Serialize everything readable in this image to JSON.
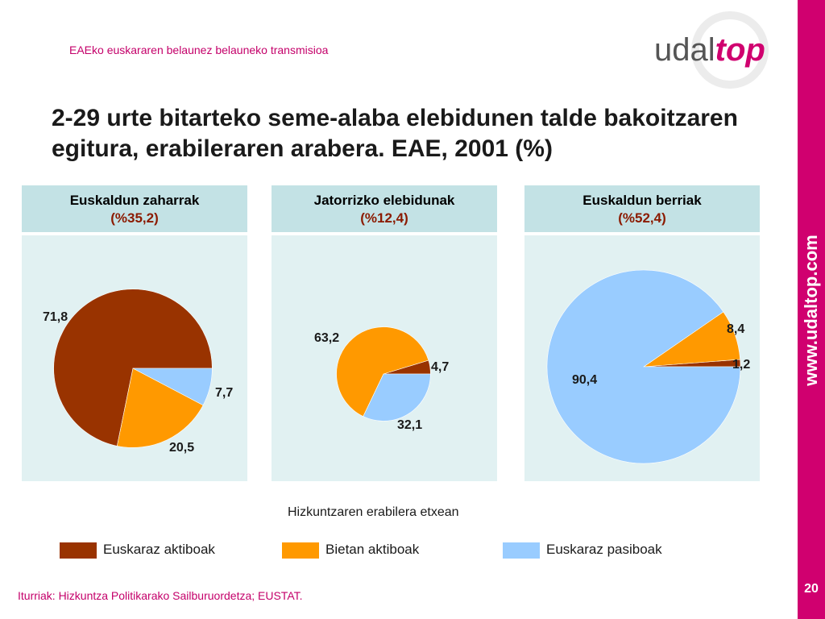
{
  "header": {
    "subtitle": "EAEko euskararen belaunez belauneko transmisioa"
  },
  "logo": {
    "part1": "udal",
    "part2": "top"
  },
  "sidebar": {
    "url": "www.udaltop.com",
    "page_number": "20"
  },
  "title": "2-29 urte bitarteko seme-alaba elebidunen talde bakoitzaren egitura, erabileraren arabera. EAE, 2001 (%)",
  "colors": {
    "accent": "#d0006f",
    "header_bg": "#c3e2e5",
    "panel_bg": "#e1f1f2"
  },
  "chart_data": [
    {
      "type": "pie",
      "title": "Euskaldun zaharrak",
      "subtitle": "(%35,2)",
      "group_share": 35.2,
      "categories": [
        "Euskaraz aktiboak",
        "Bietan aktiboak",
        "Euskaraz pasiboak"
      ],
      "values": [
        71.8,
        20.5,
        7.7
      ],
      "value_labels": [
        "71,8",
        "20,5",
        "7,7"
      ]
    },
    {
      "type": "pie",
      "title": "Jatorrizko elebidunak",
      "subtitle": "(%12,4)",
      "group_share": 12.4,
      "categories": [
        "Euskaraz aktiboak",
        "Bietan aktiboak",
        "Euskaraz pasiboak"
      ],
      "values": [
        4.7,
        63.2,
        32.1
      ],
      "value_labels": [
        "4,7",
        "63,2",
        "32,1"
      ]
    },
    {
      "type": "pie",
      "title": "Euskaldun berriak",
      "subtitle": "(%52,4)",
      "group_share": 52.4,
      "categories": [
        "Euskaraz aktiboak",
        "Bietan aktiboak",
        "Euskaraz pasiboak"
      ],
      "values": [
        1.2,
        8.4,
        90.4
      ],
      "value_labels": [
        "1,2",
        "8,4",
        "90,4"
      ]
    }
  ],
  "xlabel": "Hizkuntzaren erabilera etxean",
  "legend": [
    {
      "label": "Euskaraz aktiboak",
      "color": "#993300"
    },
    {
      "label": "Bietan aktiboak",
      "color": "#ff9900"
    },
    {
      "label": "Euskaraz pasiboak",
      "color": "#99ccff"
    }
  ],
  "source": "Iturriak: Hizkuntza Politikarako Sailburuordetza; EUSTAT."
}
